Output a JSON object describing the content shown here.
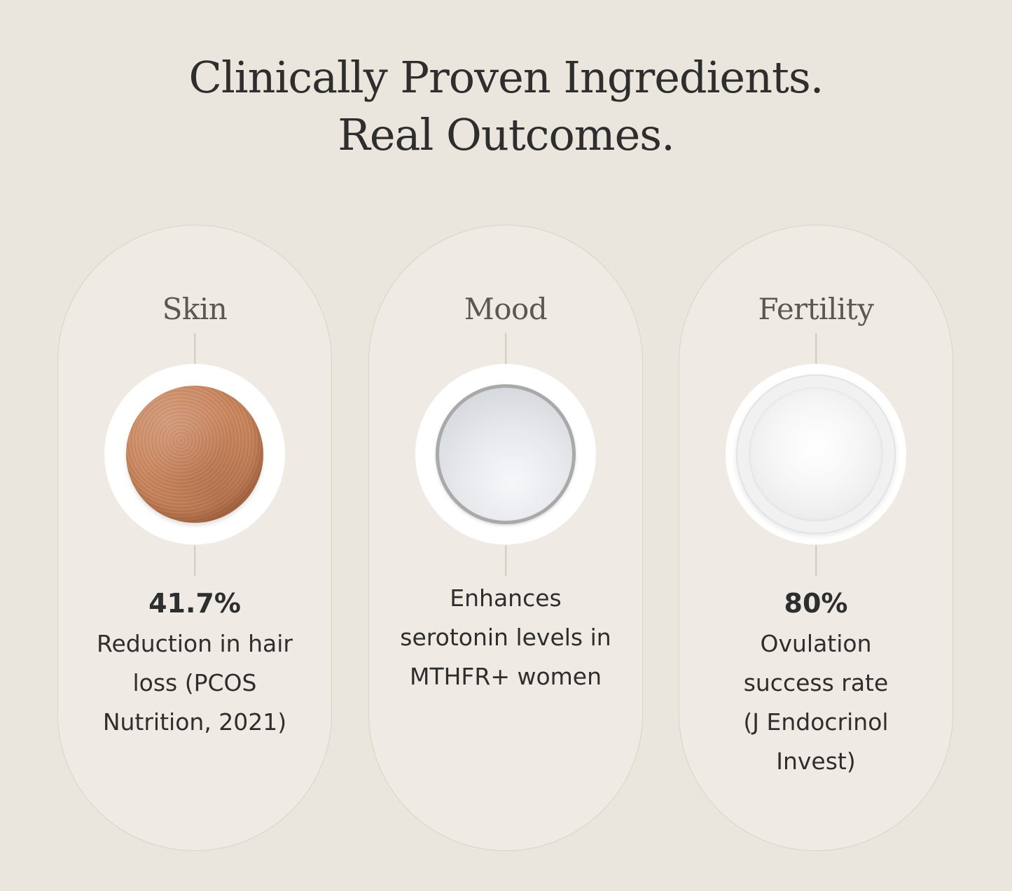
{
  "headline": {
    "line1": "Clinically Proven Ingredients.",
    "line2": "Real Outcomes."
  },
  "cards": [
    {
      "title": "Skin",
      "image": "brown-tablet",
      "stat": "41.7%",
      "description_lines": [
        "Reduction in hair",
        "loss (PCOS",
        "Nutrition, 2021)"
      ]
    },
    {
      "title": "Mood",
      "image": "white-powder-dish",
      "stat": "",
      "description_lines": [
        "Enhances",
        "serotonin levels in",
        "MTHFR+ women"
      ]
    },
    {
      "title": "Fertility",
      "image": "sugar-bowl",
      "stat": "80%",
      "description_lines": [
        "Ovulation",
        "success rate",
        "(J Endocrinol",
        "Invest)"
      ]
    }
  ],
  "colors": {
    "background": "#ebe6dd",
    "card": "#efebe4",
    "text": "#2e2e2e",
    "muted_title": "#5a5754"
  }
}
